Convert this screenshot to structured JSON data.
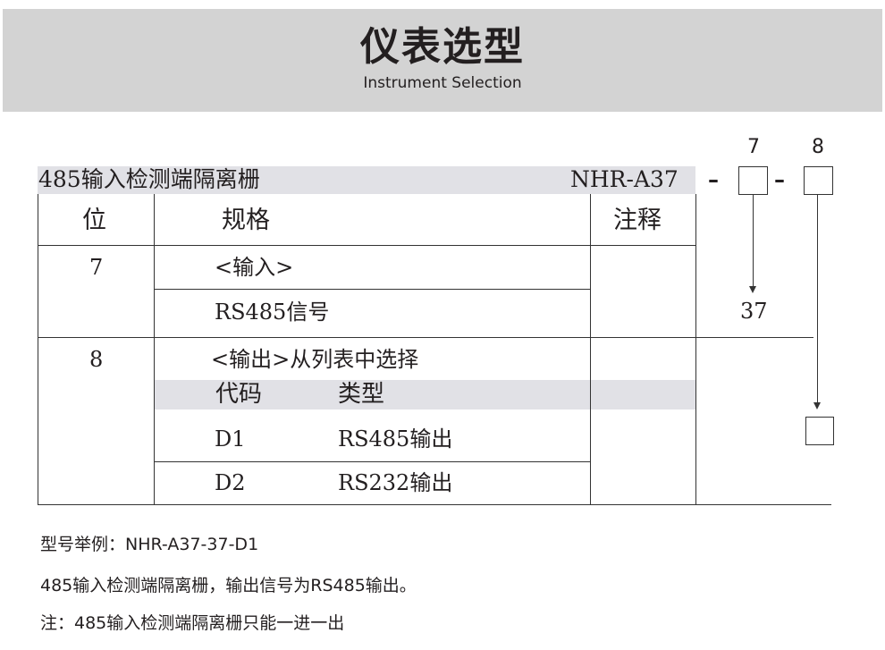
{
  "header": {
    "title": "仪表选型",
    "subtitle": "Instrument Selection"
  },
  "model": {
    "name": "485输入检测端隔离栅",
    "code": "NHR-A37",
    "dash": "–",
    "pos7_label": "7",
    "pos8_label": "8",
    "pos7_value": "37"
  },
  "table": {
    "headers": {
      "pos": "位",
      "spec": "规格",
      "note": "注释"
    },
    "row7": {
      "pos": "7",
      "spec_title": "<输入>",
      "spec_value": "RS485信号"
    },
    "row8": {
      "pos": "8",
      "spec_title": "<输出>从列表中选择",
      "sub_headers": {
        "code": "代码",
        "type": "类型"
      },
      "options": [
        {
          "code": "D1",
          "type": "RS485输出"
        },
        {
          "code": "D2",
          "type": "RS232输出"
        }
      ]
    }
  },
  "footer": {
    "example": "型号举例：NHR-A37-37-D1",
    "description": "485输入检测端隔离栅，输出信号为RS485输出。",
    "note": "注：485输入检测端隔离栅只能一进一出"
  }
}
